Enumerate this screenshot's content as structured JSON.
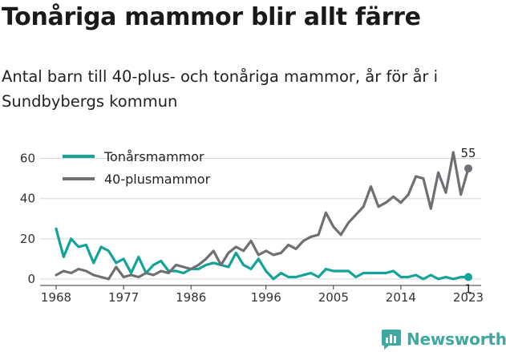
{
  "title": "Tonåriga mammor blir allt färre",
  "subtitle": "Antal barn till 40-plus- och tonåriga mammor, år för år i Sundbybergs kommun",
  "brand": "Newsworthy",
  "colors": {
    "teen": "#14a398",
    "forty": "#6f6f74",
    "grid": "#d5d5d5",
    "axis": "#333333",
    "brand": "#3fa9a0"
  },
  "chart_data": {
    "type": "line",
    "title": "Tonåriga mammor blir allt färre",
    "subtitle": "Antal barn till 40-plus- och tonåriga mammor, år för år i Sundbybergs kommun",
    "xlabel": "",
    "ylabel": "",
    "x_range": [
      1968,
      2023
    ],
    "ylim": [
      0,
      65
    ],
    "x_ticks": [
      "1968",
      "1977",
      "1986",
      "1996",
      "2005",
      "2014",
      "2023"
    ],
    "y_ticks": [
      "0",
      "20",
      "40",
      "60"
    ],
    "grid": "horizontal",
    "legend_position": "top-left",
    "x": [
      1968,
      1969,
      1970,
      1971,
      1972,
      1973,
      1974,
      1975,
      1976,
      1977,
      1978,
      1979,
      1980,
      1981,
      1982,
      1983,
      1984,
      1985,
      1986,
      1987,
      1988,
      1989,
      1990,
      1991,
      1992,
      1993,
      1994,
      1995,
      1996,
      1997,
      1998,
      1999,
      2000,
      2001,
      2002,
      2003,
      2004,
      2005,
      2006,
      2007,
      2008,
      2009,
      2010,
      2011,
      2012,
      2013,
      2014,
      2015,
      2016,
      2017,
      2018,
      2019,
      2020,
      2021,
      2022,
      2023
    ],
    "series": [
      {
        "name": "Tonårsmammor",
        "values": [
          25,
          11,
          20,
          16,
          17,
          8,
          16,
          14,
          8,
          10,
          3,
          11,
          3,
          7,
          9,
          4,
          4,
          3,
          5,
          5,
          7,
          8,
          7,
          6,
          13,
          7,
          5,
          10,
          4,
          0,
          3,
          1,
          1,
          2,
          3,
          1,
          5,
          4,
          4,
          4,
          1,
          3,
          3,
          3,
          3,
          4,
          1,
          1,
          2,
          0,
          2,
          0,
          1,
          0,
          1,
          1
        ],
        "end_label": "1"
      },
      {
        "name": "40-plusmammor",
        "values": [
          2,
          4,
          3,
          5,
          4,
          2,
          1,
          0,
          6,
          1,
          2,
          1,
          3,
          2,
          4,
          3,
          7,
          6,
          5,
          7,
          10,
          14,
          7,
          13,
          16,
          14,
          19,
          12,
          14,
          12,
          13,
          17,
          15,
          19,
          21,
          22,
          33,
          26,
          22,
          28,
          32,
          36,
          46,
          36,
          38,
          41,
          38,
          42,
          51,
          50,
          35,
          53,
          43,
          63,
          42,
          55
        ],
        "end_label": "55"
      }
    ]
  }
}
